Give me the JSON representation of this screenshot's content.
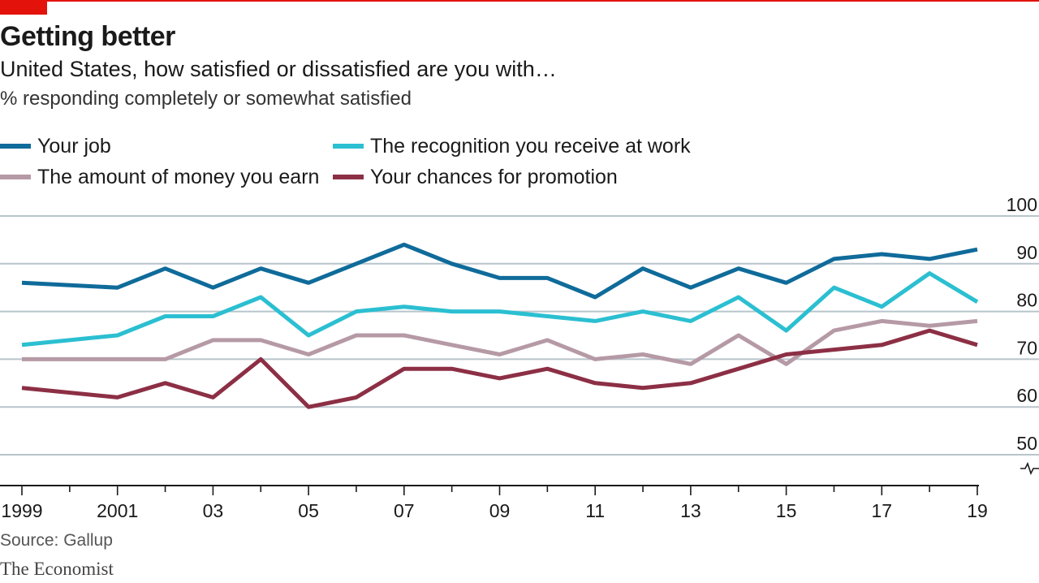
{
  "header": {
    "title": "Getting better",
    "subtitle": "United States, how satisfied or dissatisfied are you with…",
    "unit": "% responding completely or somewhat satisfied"
  },
  "footer": {
    "source": "Source: Gallup",
    "brand": "The Economist"
  },
  "colors": {
    "accent": "#e3120b",
    "job": "#0f6b9a",
    "recognition": "#2bbfd1",
    "money": "#b59aa5",
    "promotion": "#8c2f45",
    "grid": "#b8c4cc",
    "axis": "#1a1a1a"
  },
  "chart_data": {
    "type": "line",
    "title": "Getting better",
    "subtitle": "United States, how satisfied or dissatisfied are you with…",
    "ylabel": "% responding completely or somewhat satisfied",
    "ylim": [
      40,
      100
    ],
    "y_ticks": [
      50,
      60,
      70,
      80,
      90,
      100
    ],
    "x_range": [
      1999,
      2019
    ],
    "x_ticks": [
      {
        "year": 1999,
        "label": "1999"
      },
      {
        "year": 2001,
        "label": "2001"
      },
      {
        "year": 2003,
        "label": "03"
      },
      {
        "year": 2005,
        "label": "05"
      },
      {
        "year": 2007,
        "label": "07"
      },
      {
        "year": 2009,
        "label": "09"
      },
      {
        "year": 2011,
        "label": "11"
      },
      {
        "year": 2013,
        "label": "13"
      },
      {
        "year": 2015,
        "label": "15"
      },
      {
        "year": 2017,
        "label": "17"
      },
      {
        "year": 2019,
        "label": "19"
      }
    ],
    "axis_break": true,
    "grid": true,
    "legend_position": "top-left",
    "series": [
      {
        "key": "job",
        "name": "Your job",
        "x": [
          1999,
          2001,
          2002,
          2003,
          2004,
          2005,
          2006,
          2007,
          2008,
          2009,
          2010,
          2011,
          2012,
          2013,
          2014,
          2015,
          2016,
          2017,
          2018,
          2019
        ],
        "values": [
          86,
          85,
          89,
          85,
          89,
          86,
          90,
          94,
          90,
          87,
          87,
          83,
          89,
          85,
          89,
          86,
          91,
          92,
          91,
          93
        ]
      },
      {
        "key": "recognition",
        "name": "The recognition you receive at work",
        "x": [
          1999,
          2001,
          2002,
          2003,
          2004,
          2005,
          2006,
          2007,
          2008,
          2009,
          2010,
          2011,
          2012,
          2013,
          2014,
          2015,
          2016,
          2017,
          2018,
          2019
        ],
        "values": [
          73,
          75,
          79,
          79,
          83,
          75,
          80,
          81,
          80,
          80,
          79,
          78,
          80,
          78,
          83,
          76,
          85,
          81,
          88,
          82
        ]
      },
      {
        "key": "money",
        "name": "The amount of money you earn",
        "x": [
          1999,
          2001,
          2002,
          2003,
          2004,
          2005,
          2006,
          2007,
          2008,
          2009,
          2010,
          2011,
          2012,
          2013,
          2014,
          2015,
          2016,
          2017,
          2018,
          2019
        ],
        "values": [
          70,
          70,
          70,
          74,
          74,
          71,
          75,
          75,
          73,
          71,
          74,
          70,
          71,
          69,
          75,
          69,
          76,
          78,
          77,
          78
        ]
      },
      {
        "key": "promotion",
        "name": "Your chances for promotion",
        "x": [
          1999,
          2001,
          2002,
          2003,
          2004,
          2005,
          2006,
          2007,
          2008,
          2009,
          2010,
          2011,
          2012,
          2013,
          2014,
          2015,
          2016,
          2017,
          2018,
          2019
        ],
        "values": [
          64,
          62,
          65,
          62,
          70,
          60,
          62,
          68,
          68,
          66,
          68,
          65,
          64,
          65,
          68,
          71,
          72,
          73,
          76,
          73
        ]
      }
    ]
  }
}
